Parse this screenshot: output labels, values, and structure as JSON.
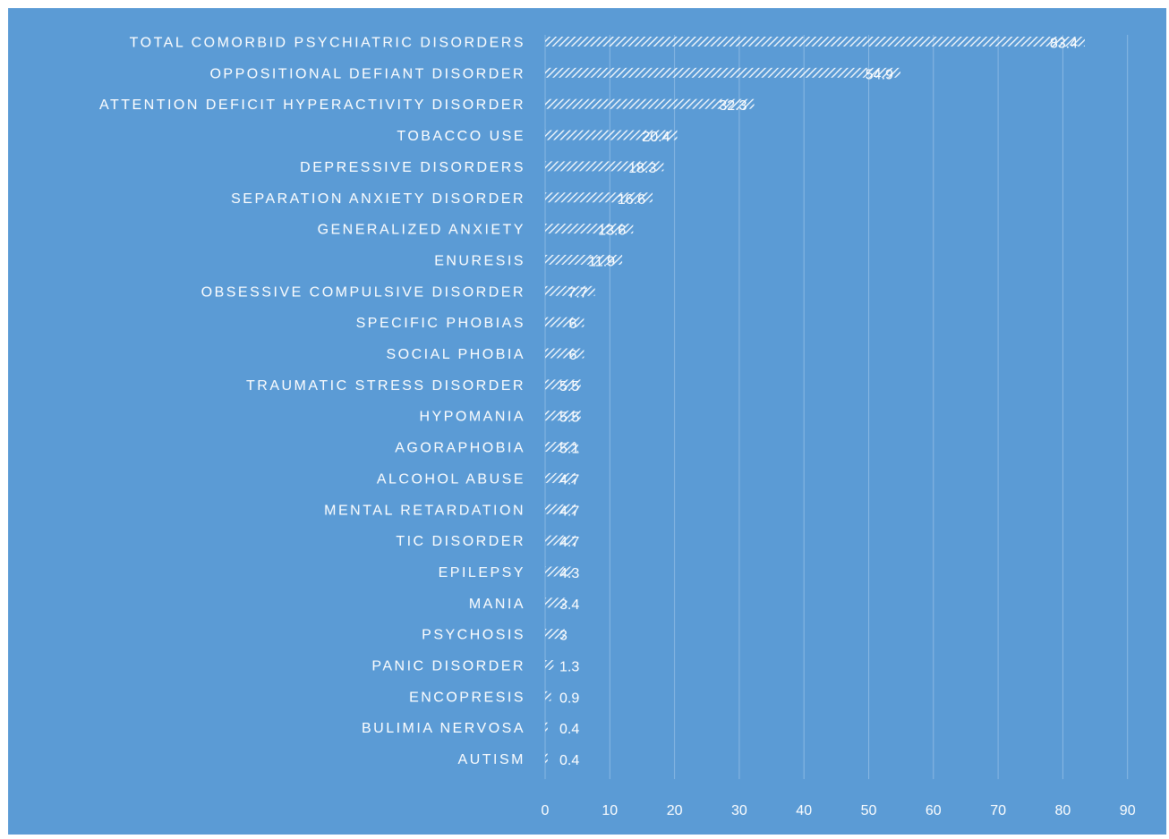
{
  "colors": {
    "background": "#5b9bd5",
    "text": "#ffffff",
    "gridline": "#8ab8e3",
    "bar_hatch": "#ffffff"
  },
  "chart_data": {
    "type": "bar",
    "orientation": "horizontal",
    "title": "",
    "xlabel": "",
    "ylabel": "",
    "xlim": [
      0,
      90
    ],
    "x_ticks": [
      0,
      10,
      20,
      30,
      40,
      50,
      60,
      70,
      80,
      90
    ],
    "grid": true,
    "legend": "none",
    "bar_pattern": "diagonal-hatch",
    "categories": [
      "TOTAL COMORBID PSYCHIATRIC DISORDERS",
      "OPPOSITIONAL DEFIANT DISORDER",
      "ATTENTION DEFICIT HYPERACTIVITY DISORDER",
      "TOBACCO USE",
      "DEPRESSIVE DISORDERS",
      "SEPARATION ANXIETY DISORDER",
      "GENERALIZED ANXIETY",
      "ENURESIS",
      "OBSESSIVE COMPULSIVE DISORDER",
      "SPECIFIC PHOBIAS",
      "SOCIAL PHOBIA",
      "TRAUMATIC STRESS DISORDER",
      "HYPOMANIA",
      "AGORAPHOBIA",
      "ALCOHOL ABUSE",
      "MENTAL RETARDATION",
      "TIC DISORDER",
      "EPILEPSY",
      "MANIA",
      "PSYCHOSIS",
      "PANIC DISORDER",
      "ENCOPRESIS",
      "BULIMIA NERVOSA",
      "AUTISM"
    ],
    "values": [
      83.4,
      54.9,
      32.3,
      20.4,
      18.3,
      16.6,
      13.6,
      11.9,
      7.7,
      6,
      6,
      5.5,
      5.5,
      5.1,
      4.7,
      4.7,
      4.7,
      4.3,
      3.4,
      3,
      1.3,
      0.9,
      0.4,
      0.4
    ],
    "data_labels": [
      "83.4",
      "54.9",
      "32.3",
      "20.4",
      "18.3",
      "16.6",
      "13.6",
      "11.9",
      "7.7",
      "6",
      "6",
      "5.5",
      "5.5",
      "5.1",
      "4.7",
      "4.7",
      "4.7",
      "4.3",
      "3.4",
      "3",
      "1.3",
      "0.9",
      "0.4",
      "0.4"
    ]
  }
}
